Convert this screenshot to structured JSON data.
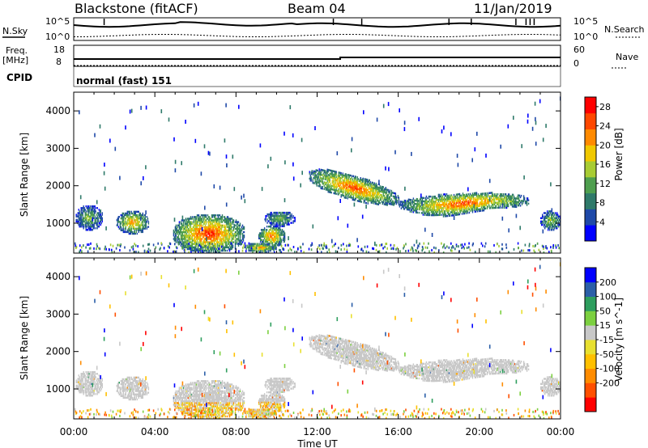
{
  "header": {
    "station": "Blackstone (fitACF)",
    "beam": "Beam 04",
    "date": "11/Jan/2019"
  },
  "top_panels": {
    "nsky_label": "N.Sky",
    "nsky_ticks": [
      "10^5",
      "10^0"
    ],
    "nsearch_label": "N.Search",
    "nsearch_ticks": [
      "10^5",
      "10^0"
    ],
    "freq_label_1": "Freq.",
    "freq_label_2": "[MHz]",
    "freq_ticks": [
      "18",
      "8"
    ],
    "nave_label": "Nave",
    "nave_ticks": [
      "60",
      "0"
    ],
    "cpid_label": "CPID",
    "cpid_text": "normal (fast) 151"
  },
  "colors": {
    "power_scale": [
      "#0000ff",
      "#1f49a8",
      "#2f7a6a",
      "#4f9f4f",
      "#a8cc34",
      "#f0c800",
      "#ff8a00",
      "#ff4800",
      "#ff0000"
    ],
    "velocity_scale": [
      "#ff0000",
      "#ff5000",
      "#ff8c00",
      "#ffc000",
      "#e8e030",
      "#c8c8c8",
      "#7cd040",
      "#2e9e5e",
      "#2b5fa8",
      "#0000ff"
    ],
    "gray": "#c8c8c8"
  },
  "chart_data": [
    {
      "type": "heatmap",
      "panel": "power",
      "ylabel": "Slant Range [km]",
      "yticks": [
        "1000",
        "2000",
        "3000",
        "4000"
      ],
      "ylim": [
        200,
        4500
      ],
      "xlim_hours": [
        0,
        24
      ],
      "colorbar": {
        "label": "Power [dB]",
        "ticks": [
          "4",
          "8",
          "12",
          "16",
          "20",
          "24",
          "28"
        ],
        "range": [
          0,
          30
        ]
      },
      "regions": [
        {
          "t0": 0.1,
          "t1": 1.4,
          "r0": 800,
          "r1": 1450,
          "peak": 14
        },
        {
          "t0": 2.1,
          "t1": 3.7,
          "r0": 700,
          "r1": 1300,
          "peak": 22
        },
        {
          "t0": 4.9,
          "t1": 8.4,
          "r0": 200,
          "r1": 1200,
          "peak": 28
        },
        {
          "t0": 9.1,
          "t1": 10.4,
          "r0": 350,
          "r1": 900,
          "peak": 25
        },
        {
          "t0": 8.4,
          "t1": 10.0,
          "r0": 200,
          "r1": 450,
          "peak": 22
        },
        {
          "t0": 9.4,
          "t1": 10.9,
          "r0": 900,
          "r1": 1300,
          "peak": 14
        },
        {
          "t0": 11.6,
          "t1": 16.0,
          "r0": 1200,
          "r1": 2600,
          "peak": 26
        },
        {
          "t0": 16.0,
          "t1": 22.4,
          "r0": 1100,
          "r1": 1900,
          "peak": 26
        },
        {
          "t0": 23.0,
          "t1": 24.0,
          "r0": 800,
          "r1": 1300,
          "peak": 16
        }
      ]
    },
    {
      "type": "heatmap",
      "panel": "velocity",
      "ylabel": "Slant Range [km]",
      "yticks": [
        "1000",
        "2000",
        "3000",
        "4000"
      ],
      "ylim": [
        200,
        4500
      ],
      "xlabel": "Time UT",
      "xticks": [
        "00:00",
        "04:00",
        "08:00",
        "12:00",
        "16:00",
        "20:00",
        "00:00"
      ],
      "xlim_hours": [
        0,
        24
      ],
      "colorbar": {
        "label": "Velocity [m s^-1]",
        "ticks": [
          "200",
          "100",
          "50",
          "15",
          "-15",
          "-50",
          "-100",
          "-200"
        ]
      }
    }
  ]
}
